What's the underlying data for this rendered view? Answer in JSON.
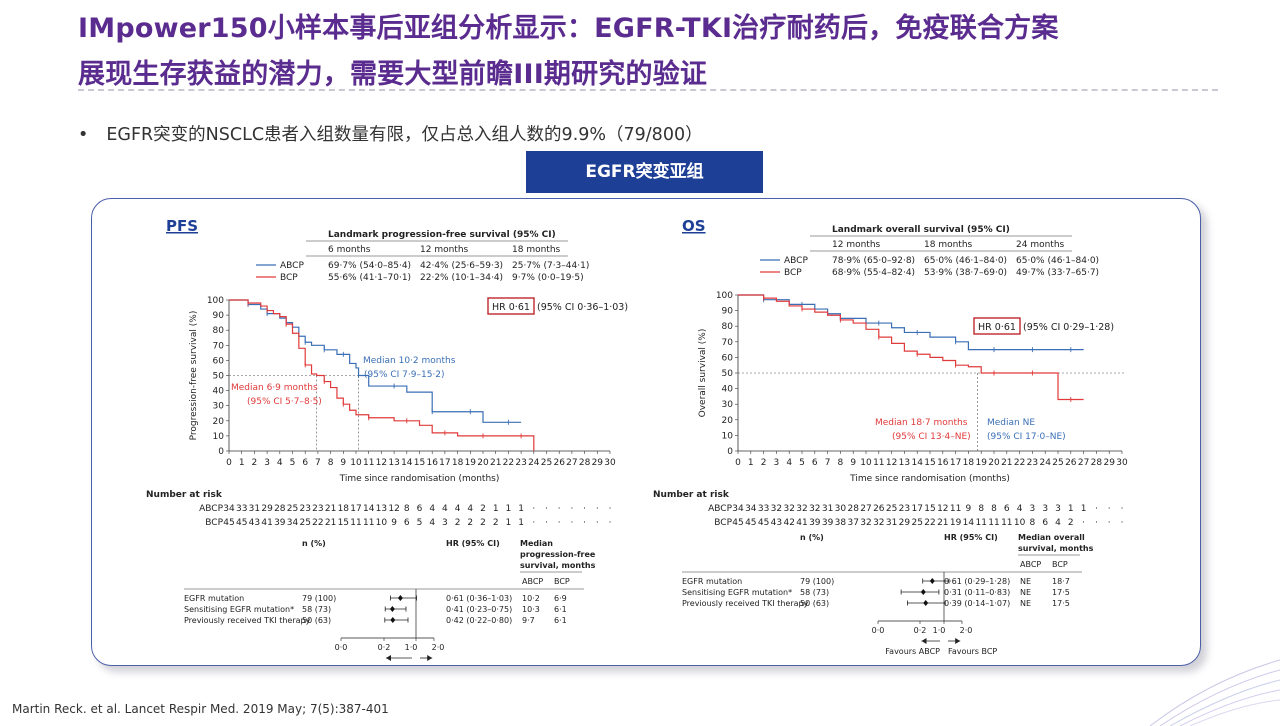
{
  "title": {
    "line1": "IMpower150小样本事后亚组分析显示：EGFR-TKI治疗耐药后，免疫联合方案",
    "line2": "展现生存获益的潜力，需要大型前瞻III期研究的验证"
  },
  "bullet": "EGFR突变的NSCLC患者入组数量有限，仅占总入组人数的9.9%（79/800）",
  "badge": "EGFR突变亚组",
  "reference": "Martin Reck. et al. Lancet Respir Med. 2019 May; 7(5):387-401",
  "colors": {
    "abcp": "#3a6fb5",
    "bcp": "#e03a3a",
    "title": "#5b2c8f",
    "badge": "#1e3f96"
  },
  "pfs": {
    "label": "PFS",
    "landmark_title": "Landmark progression-free survival (95% CI)",
    "landmark_headers": [
      "6 months",
      "12 months",
      "18 months"
    ],
    "landmark_rows": [
      {
        "arm": "ABCP",
        "values": [
          "69·7% (54·0–85·4)",
          "42·4% (25·6–59·3)",
          "25·7% (7·3–44·1)"
        ]
      },
      {
        "arm": "BCP",
        "values": [
          "55·6% (41·1–70·1)",
          "22·2% (10·1–34·4)",
          "9·7% (0·0–19·5)"
        ]
      }
    ],
    "hr_box": "HR 0·61",
    "hr_ci": "(95% CI 0·36–1·03)",
    "median_abcp": [
      "Median 10·2 months",
      "(95% CI 7·9–15·2)"
    ],
    "median_bcp": [
      "Median 6·9 months",
      "(95% CI 5·7–8·5)"
    ],
    "ylabel": "Progression-free survival (%)",
    "xlabel": "Time since randomisation (months)",
    "y_ticks": [
      "0",
      "10",
      "20",
      "30",
      "40",
      "50",
      "60",
      "70",
      "80",
      "90",
      "100"
    ],
    "x_ticks": [
      "0",
      "1",
      "2",
      "3",
      "4",
      "5",
      "6",
      "7",
      "8",
      "9",
      "10",
      "11",
      "12",
      "13",
      "14",
      "15",
      "16",
      "17",
      "18",
      "19",
      "20",
      "21",
      "22",
      "23",
      "24",
      "25",
      "26",
      "27",
      "28",
      "29",
      "30"
    ],
    "risk_title": "Number at risk",
    "risk_rows": [
      {
        "arm": "ABCP",
        "values": [
          "34",
          "33",
          "31",
          "29",
          "28",
          "25",
          "23",
          "23",
          "21",
          "18",
          "17",
          "14",
          "13",
          "12",
          "8",
          "6",
          "4",
          "4",
          "4",
          "4",
          "2",
          "1",
          "1",
          "1",
          "·",
          "·",
          "·",
          "·",
          "·",
          "·",
          "·"
        ]
      },
      {
        "arm": "BCP",
        "values": [
          "45",
          "45",
          "43",
          "41",
          "39",
          "34",
          "25",
          "22",
          "21",
          "15",
          "11",
          "11",
          "10",
          "9",
          "6",
          "5",
          "4",
          "3",
          "2",
          "2",
          "2",
          "2",
          "1",
          "1",
          "·",
          "·",
          "·",
          "·",
          "·",
          "·",
          "·"
        ]
      }
    ],
    "forest": {
      "header_n": "n (%)",
      "header_hr": "HR (95% CI)",
      "header_median": [
        "Median",
        "progression-free",
        "survival, months"
      ],
      "arm_headers": [
        "ABCP",
        "BCP"
      ],
      "rows": [
        {
          "label": "EGFR mutation",
          "n": "79 (100)",
          "hr_text": "0·61 (0·36–1·03)",
          "m1": "10·2",
          "m2": "6·9",
          "hr": 0.61,
          "lo": 0.36,
          "hi": 1.03
        },
        {
          "label": "Sensitising EGFR mutation*",
          "n": "58 (73)",
          "hr_text": "0·41 (0·23–0·75)",
          "m1": "10·3",
          "m2": "6·1",
          "hr": 0.41,
          "lo": 0.23,
          "hi": 0.75
        },
        {
          "label": "Previously received TKI therapy",
          "n": "50 (63)",
          "hr_text": "0·42 (0·22–0·80)",
          "m1": "9·7",
          "m2": "6·1",
          "hr": 0.42,
          "lo": 0.22,
          "hi": 0.8
        }
      ],
      "axis_ticks": [
        "0·0",
        "0·2",
        "1·0",
        "2·0"
      ],
      "favours_left": "Favours ABCP",
      "favours_right": "Favours BCP"
    }
  },
  "os": {
    "label": "OS",
    "landmark_title": "Landmark overall survival (95% CI)",
    "landmark_headers": [
      "12 months",
      "18 months",
      "24 months"
    ],
    "landmark_rows": [
      {
        "arm": "ABCP",
        "values": [
          "78·9% (65·0–92·8)",
          "65·0% (46·1–84·0)",
          "65·0% (46·1–84·0)"
        ]
      },
      {
        "arm": "BCP",
        "values": [
          "68·9% (55·4–82·4)",
          "53·9% (38·7–69·0)",
          "49·7% (33·7–65·7)"
        ]
      }
    ],
    "hr_box": "HR 0·61",
    "hr_ci": "(95% CI 0·29–1·28)",
    "median_abcp": [
      "Median NE",
      "(95% CI 17·0–NE)"
    ],
    "median_bcp": [
      "Median 18·7 months",
      "(95% CI 13·4–NE)"
    ],
    "ylabel": "Overall survival (%)",
    "xlabel": "Time since randomisation (months)",
    "y_ticks": [
      "0",
      "10",
      "20",
      "30",
      "40",
      "50",
      "60",
      "70",
      "80",
      "90",
      "100"
    ],
    "x_ticks": [
      "0",
      "1",
      "2",
      "3",
      "4",
      "5",
      "6",
      "7",
      "8",
      "9",
      "10",
      "11",
      "12",
      "13",
      "14",
      "15",
      "16",
      "17",
      "18",
      "19",
      "20",
      "21",
      "22",
      "23",
      "24",
      "25",
      "26",
      "27",
      "28",
      "29",
      "30"
    ],
    "risk_title": "Number at risk",
    "risk_rows": [
      {
        "arm": "ABCP",
        "values": [
          "34",
          "34",
          "33",
          "32",
          "32",
          "32",
          "32",
          "31",
          "30",
          "28",
          "27",
          "26",
          "25",
          "23",
          "17",
          "15",
          "12",
          "11",
          "9",
          "8",
          "8",
          "6",
          "4",
          "3",
          "3",
          "3",
          "1",
          "1",
          "·",
          "·",
          "·"
        ]
      },
      {
        "arm": "BCP",
        "values": [
          "45",
          "45",
          "45",
          "43",
          "42",
          "41",
          "39",
          "39",
          "38",
          "37",
          "32",
          "32",
          "31",
          "29",
          "25",
          "22",
          "21",
          "19",
          "14",
          "11",
          "11",
          "11",
          "10",
          "8",
          "6",
          "4",
          "2",
          "·",
          "·",
          "·",
          "·"
        ]
      }
    ],
    "forest": {
      "header_n": "n (%)",
      "header_hr": "HR (95% CI)",
      "header_median": [
        "Median overall",
        "survival, months"
      ],
      "arm_headers": [
        "ABCP",
        "BCP"
      ],
      "rows": [
        {
          "label": "EGFR mutation",
          "n": "79 (100)",
          "hr_text": "0·61 (0·29–1·28)",
          "m1": "NE",
          "m2": "18·7",
          "hr": 0.61,
          "lo": 0.29,
          "hi": 1.28
        },
        {
          "label": "Sensitising EGFR mutation*",
          "n": "58 (73)",
          "hr_text": "0·31 (0·11–0·83)",
          "m1": "NE",
          "m2": "17·5",
          "hr": 0.31,
          "lo": 0.11,
          "hi": 0.83
        },
        {
          "label": "Previously received TKI therapy",
          "n": "50 (63)",
          "hr_text": "0·39 (0·14–1·07)",
          "m1": "NE",
          "m2": "17·5",
          "hr": 0.39,
          "lo": 0.14,
          "hi": 1.07
        }
      ],
      "axis_ticks": [
        "0·0",
        "0·2",
        "1·0",
        "2·0"
      ],
      "favours_left": "Favours ABCP",
      "favours_right": "Favours BCP"
    }
  },
  "chart_data": [
    {
      "type": "line",
      "ylabel": "Progression-free survival (%)",
      "xlabel": "Time since randomisation (months)",
      "xlim": [
        0,
        30
      ],
      "ylim": [
        0,
        100
      ],
      "series": [
        {
          "name": "ABCP",
          "x": [
            0,
            1,
            1.5,
            2,
            2.5,
            3,
            3.5,
            4,
            4.5,
            5,
            5.5,
            6,
            6.5,
            7,
            7.5,
            8,
            8.5,
            9,
            9.5,
            10,
            10.2,
            11,
            12,
            13,
            14,
            15,
            16,
            17,
            18,
            19,
            20,
            21,
            22,
            23
          ],
          "y": [
            100,
            100,
            97,
            97,
            94,
            91,
            91,
            88,
            85,
            82,
            76,
            72,
            70,
            70,
            67,
            67,
            64,
            64,
            58,
            55,
            50,
            43,
            43,
            43,
            39,
            39,
            26,
            26,
            26,
            26,
            19,
            19,
            19,
            19
          ]
        },
        {
          "name": "BCP",
          "x": [
            0,
            1,
            1.5,
            2,
            2.5,
            3,
            3.5,
            4,
            4.5,
            5,
            5.5,
            6,
            6.5,
            6.9,
            7.5,
            8,
            8.5,
            9,
            9.5,
            10,
            11,
            12,
            13,
            14,
            15,
            16,
            17,
            18,
            19,
            20,
            21,
            22,
            23,
            24
          ],
          "y": [
            100,
            100,
            98,
            98,
            96,
            93,
            91,
            89,
            84,
            78,
            68,
            57,
            51,
            50,
            46,
            42,
            35,
            31,
            27,
            24,
            22,
            22,
            20,
            20,
            17,
            12,
            12,
            10,
            10,
            10,
            10,
            10,
            10,
            0
          ]
        }
      ]
    },
    {
      "type": "line",
      "ylabel": "Overall survival (%)",
      "xlabel": "Time since randomisation (months)",
      "xlim": [
        0,
        30
      ],
      "ylim": [
        0,
        100
      ],
      "series": [
        {
          "name": "ABCP",
          "x": [
            0,
            1,
            2,
            3,
            4,
            5,
            6,
            7,
            8,
            9,
            10,
            11,
            12,
            13,
            14,
            15,
            16,
            17,
            18,
            19,
            20,
            21,
            22,
            23,
            24,
            25,
            26,
            27
          ],
          "y": [
            100,
            100,
            97,
            97,
            94,
            94,
            91,
            88,
            85,
            85,
            82,
            82,
            79,
            76,
            76,
            73,
            73,
            70,
            65,
            65,
            65,
            65,
            65,
            65,
            65,
            65,
            65,
            65
          ]
        },
        {
          "name": "BCP",
          "x": [
            0,
            1,
            2,
            3,
            4,
            5,
            6,
            7,
            8,
            9,
            10,
            11,
            12,
            13,
            14,
            15,
            16,
            17,
            18,
            19,
            20,
            21,
            22,
            23,
            24,
            25,
            26,
            27
          ],
          "y": [
            100,
            100,
            98,
            96,
            93,
            91,
            89,
            87,
            84,
            82,
            78,
            73,
            69,
            64,
            62,
            60,
            58,
            55,
            54,
            50,
            50,
            50,
            50,
            50,
            50,
            33,
            33,
            33
          ]
        }
      ]
    }
  ]
}
